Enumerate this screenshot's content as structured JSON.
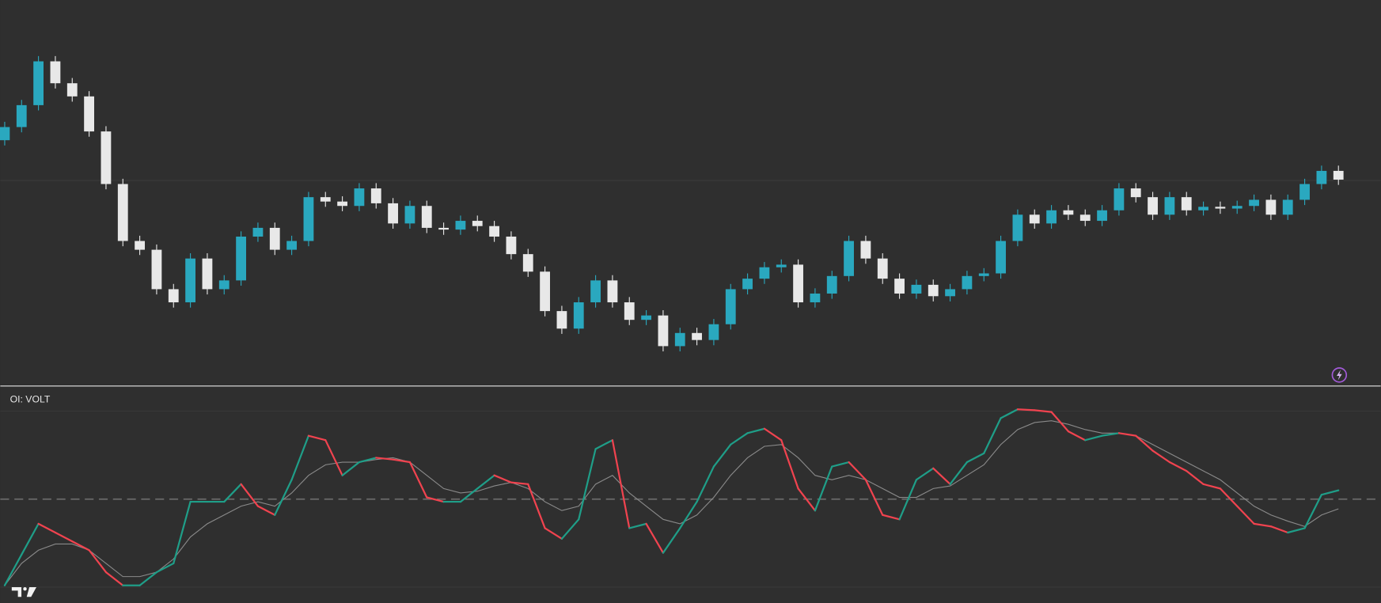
{
  "chart_data": [
    {
      "type": "candlestick",
      "ylim": [
        0,
        440
      ],
      "up_color": "#2aa8bf",
      "down_color": "#e8e8e8",
      "open": [
        280,
        295,
        320,
        370,
        345,
        330,
        290,
        230,
        165,
        155,
        110,
        95,
        145,
        110,
        120,
        170,
        180,
        155,
        165,
        215,
        210,
        205,
        225,
        208,
        185,
        205,
        180,
        178,
        188,
        182,
        170,
        150,
        130,
        85,
        65,
        95,
        120,
        95,
        75,
        80,
        45,
        60,
        52,
        70,
        110,
        122,
        135,
        138,
        95,
        105,
        125,
        165,
        145,
        122,
        105,
        115,
        102,
        110,
        125,
        128,
        165,
        195,
        185,
        200,
        195,
        188,
        200,
        225,
        215,
        195,
        215,
        200,
        204,
        202,
        205,
        212,
        195,
        212,
        230,
        245
      ],
      "high": [
        301,
        326,
        376,
        376,
        351,
        336,
        296,
        236,
        171,
        161,
        116,
        151,
        151,
        126,
        176,
        186,
        186,
        171,
        221,
        221,
        216,
        231,
        231,
        214,
        211,
        211,
        186,
        194,
        194,
        188,
        176,
        156,
        136,
        91,
        101,
        126,
        126,
        101,
        86,
        86,
        66,
        66,
        76,
        116,
        128,
        141,
        144,
        144,
        111,
        131,
        171,
        171,
        151,
        128,
        121,
        121,
        116,
        131,
        134,
        171,
        201,
        201,
        206,
        206,
        201,
        206,
        231,
        231,
        221,
        221,
        221,
        210,
        210,
        211,
        218,
        218,
        218,
        236,
        251,
        251
      ],
      "low": [
        274,
        289,
        314,
        339,
        324,
        284,
        224,
        159,
        149,
        104,
        89,
        89,
        104,
        104,
        114,
        164,
        149,
        149,
        159,
        204,
        199,
        199,
        202,
        179,
        179,
        174,
        172,
        172,
        176,
        164,
        144,
        124,
        79,
        59,
        59,
        89,
        89,
        69,
        69,
        39,
        39,
        46,
        46,
        64,
        104,
        116,
        129,
        89,
        89,
        99,
        119,
        139,
        116,
        99,
        99,
        96,
        96,
        104,
        119,
        122,
        159,
        179,
        179,
        189,
        182,
        182,
        194,
        209,
        189,
        189,
        194,
        194,
        196,
        196,
        199,
        189,
        189,
        206,
        224,
        229
      ],
      "close": [
        295,
        320,
        370,
        345,
        330,
        290,
        230,
        165,
        155,
        110,
        95,
        145,
        110,
        120,
        170,
        180,
        155,
        165,
        215,
        210,
        205,
        225,
        208,
        185,
        205,
        180,
        178,
        188,
        182,
        170,
        150,
        130,
        85,
        65,
        95,
        120,
        95,
        75,
        80,
        45,
        60,
        52,
        70,
        110,
        122,
        135,
        138,
        95,
        105,
        125,
        165,
        145,
        122,
        105,
        115,
        102,
        110,
        125,
        128,
        165,
        195,
        185,
        200,
        195,
        188,
        200,
        225,
        215,
        195,
        215,
        200,
        204,
        202,
        205,
        212,
        195,
        212,
        230,
        245,
        235
      ]
    },
    {
      "type": "line",
      "title": "OI: VOLT",
      "ylim": [
        -118,
        127
      ],
      "zero_line": 0,
      "series": [
        {
          "up_color": "#1f9e88",
          "down_color": "#f0434f",
          "values": [
            -98,
            -63,
            -28,
            -38,
            -48,
            -58,
            -83,
            -98,
            -98,
            -83,
            -73,
            -3,
            -3,
            -3,
            17,
            -8,
            -18,
            22,
            72,
            67,
            27,
            42,
            47,
            45,
            42,
            2,
            -3,
            -3,
            12,
            27,
            19,
            17,
            -33,
            -45,
            -23,
            57,
            67,
            -33,
            -28,
            -61,
            -33,
            -3,
            37,
            62,
            75,
            80,
            67,
            12,
            -13,
            37,
            42,
            22,
            -18,
            -23,
            22,
            35,
            17,
            42,
            52,
            92,
            102,
            101,
            99,
            77,
            67,
            72,
            75,
            72,
            55,
            42,
            32,
            17,
            12,
            -8,
            -28,
            -31,
            -38,
            -33,
            5,
            10
          ]
        },
        {
          "color": "#8a8a8a",
          "values": [
            -98,
            -73,
            -58,
            -51,
            -51,
            -58,
            -73,
            -88,
            -88,
            -83,
            -68,
            -43,
            -28,
            -18,
            -8,
            -3,
            -8,
            7,
            27,
            39,
            42,
            42,
            45,
            47,
            42,
            27,
            12,
            7,
            9,
            15,
            19,
            12,
            -3,
            -13,
            -8,
            17,
            27,
            7,
            -8,
            -23,
            -28,
            -18,
            2,
            27,
            47,
            60,
            62,
            47,
            27,
            22,
            27,
            22,
            12,
            2,
            2,
            12,
            15,
            27,
            39,
            62,
            79,
            87,
            89,
            85,
            79,
            75,
            75,
            72,
            62,
            52,
            42,
            32,
            22,
            7,
            -8,
            -18,
            -25,
            -31,
            -18,
            -11
          ]
        }
      ]
    }
  ]
}
